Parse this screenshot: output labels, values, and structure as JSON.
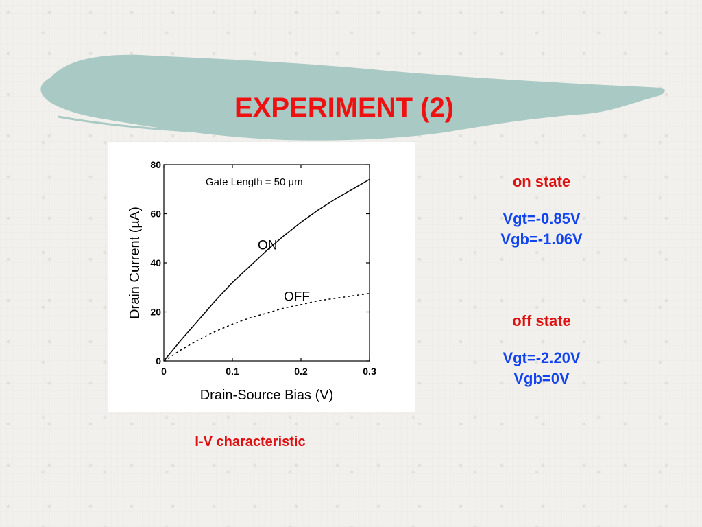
{
  "slide": {
    "title": "EXPERIMENT (2)",
    "caption": "I-V characteristic"
  },
  "colors": {
    "title": "#ee1111",
    "caption": "#dd1111",
    "state_heading": "#dd1111",
    "state_values": "#1144ee",
    "brush": "#a9c9c4",
    "curve": "#000000"
  },
  "on_state": {
    "heading": "on state",
    "vgt": "Vgt=-0.85V",
    "vgb": "Vgb=-1.06V"
  },
  "off_state": {
    "heading": "off state",
    "vgt": "Vgt=-2.20V",
    "vgb": "Vgb=0V"
  },
  "chart_data": {
    "type": "line",
    "annotation": "Gate Length = 50 µm",
    "xlabel": "Drain-Source Bias (V)",
    "ylabel": "Drain Current (µA)",
    "xlim": [
      0,
      0.3
    ],
    "ylim": [
      0,
      80
    ],
    "xticks": [
      0,
      0.1,
      0.2,
      0.3
    ],
    "xtick_labels": [
      "0",
      "0.1",
      "0.2",
      "0.3"
    ],
    "yticks": [
      0,
      20,
      40,
      60,
      80
    ],
    "ytick_labels": [
      "0",
      "20",
      "40",
      "60",
      "80"
    ],
    "grid": false,
    "series": [
      {
        "name": "ON",
        "style": "solid",
        "x": [
          0,
          0.025,
          0.05,
          0.075,
          0.1,
          0.125,
          0.15,
          0.175,
          0.2,
          0.225,
          0.25,
          0.275,
          0.3
        ],
        "y": [
          0,
          8.5,
          16.5,
          24.5,
          32,
          38.5,
          45,
          51,
          56.5,
          61.5,
          66,
          70,
          74
        ]
      },
      {
        "name": "OFF",
        "style": "dashed",
        "x": [
          0,
          0.025,
          0.05,
          0.075,
          0.1,
          0.125,
          0.15,
          0.175,
          0.2,
          0.225,
          0.25,
          0.275,
          0.3
        ],
        "y": [
          0,
          4.5,
          8.5,
          12,
          15,
          17.5,
          19.5,
          21.5,
          23,
          24.5,
          25.5,
          26.5,
          27.5
        ]
      }
    ]
  }
}
